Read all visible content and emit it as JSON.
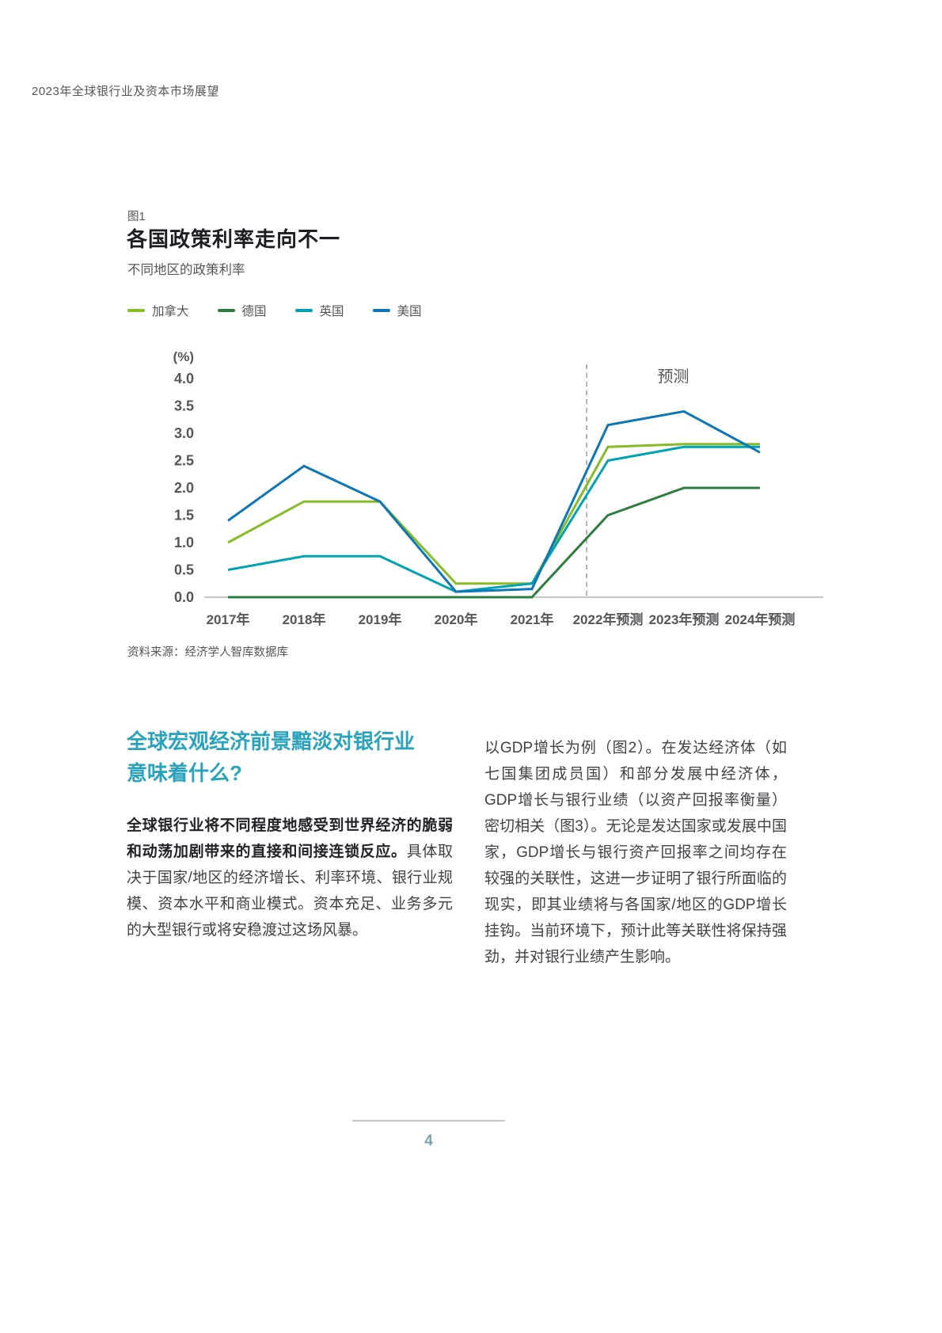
{
  "page": {
    "header": "2023年全球银行业及资本市场展望",
    "page_number": "4"
  },
  "figure": {
    "tag": "图1"
  },
  "chart_data": {
    "type": "line",
    "title": "各国政策利率走向不一",
    "subtitle": "不同地区的政策利率",
    "unit": "(%)",
    "categories": [
      "2017年",
      "2018年",
      "2019年",
      "2020年",
      "2021年",
      "2022年预测",
      "2023年预测",
      "2024年预测"
    ],
    "series": [
      {
        "name": "加拿大",
        "color": "#86BC25",
        "values": [
          1.0,
          1.75,
          1.75,
          0.25,
          0.25,
          2.75,
          2.8,
          2.8
        ]
      },
      {
        "name": "德国",
        "color": "#2E7D40",
        "values": [
          0.0,
          0.0,
          0.0,
          0.0,
          0.0,
          1.5,
          2.0,
          2.0
        ]
      },
      {
        "name": "英国",
        "color": "#00A3B4",
        "values": [
          0.5,
          0.75,
          0.75,
          0.1,
          0.25,
          2.5,
          2.75,
          2.75
        ]
      },
      {
        "name": "美国",
        "color": "#0B76B8",
        "values": [
          1.4,
          2.4,
          1.75,
          0.1,
          0.15,
          3.15,
          3.4,
          2.65
        ]
      }
    ],
    "ylim": [
      0,
      4
    ],
    "ytick_step": 0.5,
    "grid": false,
    "legend_position": "top",
    "forecast_start_index": 5,
    "forecast_label": "预测",
    "axis_color": "#53565A",
    "baseline_color": "#C6C7C8",
    "divider_color": "#9FA1A4",
    "source": "资料来源：经济学人智库数据库"
  },
  "article": {
    "heading": "全球宏观经济前景黯淡对银行业意味着什么?",
    "left_lead_bold": "全球银行业将不同程度地感受到世界经济的脆弱和动荡加剧带来的直接和间接连锁反应。",
    "left_lead_rest": "具体取决于国家/地区的经济增长、利率环境、银行业规模、资本水平和商业模式。资本充足、业务多元的大型银行或将安稳渡过这场风暴。",
    "right_paragraph": "以GDP增长为例（图2）。在发达经济体（如七国集团成员国）和部分发展中经济体，GDP增长与银行业绩（以资产回报率衡量）密切相关（图3）。无论是发达国家或发展中国家，GDP增长与银行资产回报率之间均存在较强的关联性，这进一步证明了银行所面临的现实，即其业绩将与各国家/地区的GDP增长挂钩。当前环境下，预计此等关联性将保持强劲，并对银行业绩产生影响。"
  }
}
